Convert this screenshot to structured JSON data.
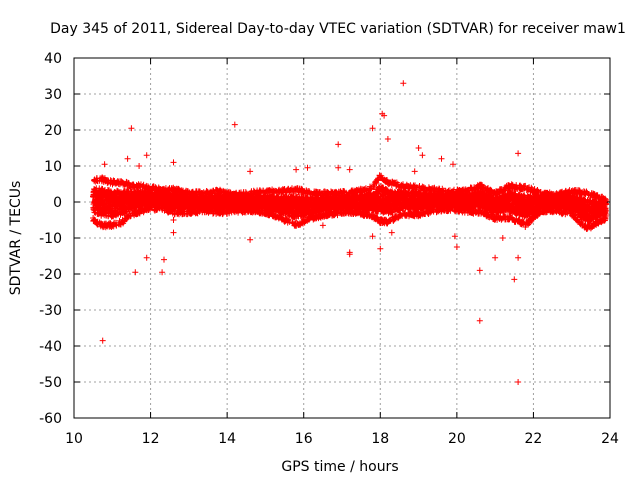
{
  "chart_data": {
    "type": "scatter",
    "title": "Day 345 of 2011, Sidereal Day-to-day VTEC variation (SDTVAR) for receiver maw1",
    "xlabel": "GPS time / hours",
    "ylabel": "SDTVAR / TECUs",
    "xlim": [
      10,
      24
    ],
    "ylim": [
      -60,
      40
    ],
    "xticks": [
      10,
      12,
      14,
      16,
      18,
      20,
      22,
      24
    ],
    "yticks": [
      -60,
      -50,
      -40,
      -30,
      -20,
      -10,
      0,
      10,
      20,
      30,
      40
    ],
    "grid": true,
    "marker": "+",
    "color": "#ff0000",
    "series": [
      {
        "name": "maw1",
        "band": [
          [
            10.5,
            -5.5,
            6.5
          ],
          [
            10.7,
            -7.0,
            7.0
          ],
          [
            11.0,
            -7.0,
            6.0
          ],
          [
            11.3,
            -6.0,
            6.0
          ],
          [
            11.5,
            -4.0,
            5.0
          ],
          [
            11.8,
            -3.0,
            5.0
          ],
          [
            12.0,
            -2.5,
            4.5
          ],
          [
            12.3,
            -2.5,
            4.0
          ],
          [
            12.6,
            -3.5,
            4.0
          ],
          [
            13.0,
            -3.5,
            3.0
          ],
          [
            13.4,
            -3.0,
            3.0
          ],
          [
            13.8,
            -3.5,
            3.5
          ],
          [
            14.2,
            -3.0,
            2.5
          ],
          [
            14.6,
            -3.0,
            3.0
          ],
          [
            15.0,
            -3.5,
            3.5
          ],
          [
            15.4,
            -5.0,
            3.5
          ],
          [
            15.8,
            -7.0,
            4.0
          ],
          [
            16.2,
            -5.0,
            3.0
          ],
          [
            16.6,
            -4.0,
            3.0
          ],
          [
            17.0,
            -3.5,
            3.0
          ],
          [
            17.4,
            -3.5,
            3.5
          ],
          [
            17.8,
            -4.5,
            4.5
          ],
          [
            18.0,
            -6.0,
            8.0
          ],
          [
            18.2,
            -6.0,
            6.0
          ],
          [
            18.6,
            -4.0,
            5.0
          ],
          [
            19.0,
            -4.0,
            4.5
          ],
          [
            19.4,
            -3.0,
            4.0
          ],
          [
            19.8,
            -2.5,
            3.5
          ],
          [
            20.2,
            -3.0,
            3.5
          ],
          [
            20.6,
            -3.5,
            5.0
          ],
          [
            21.0,
            -5.0,
            3.0
          ],
          [
            21.4,
            -5.0,
            5.0
          ],
          [
            21.8,
            -7.0,
            4.5
          ],
          [
            22.2,
            -3.0,
            3.0
          ],
          [
            22.6,
            -3.0,
            2.5
          ],
          [
            23.0,
            -4.0,
            3.5
          ],
          [
            23.4,
            -8.0,
            3.0
          ],
          [
            23.7,
            -6.0,
            2.0
          ],
          [
            23.9,
            -5.0,
            1.0
          ]
        ],
        "outliers": [
          [
            10.75,
            -38.5
          ],
          [
            11.5,
            20.5
          ],
          [
            11.6,
            -19.5
          ],
          [
            11.9,
            -15.5
          ],
          [
            12.3,
            -19.5
          ],
          [
            12.35,
            -16.0
          ],
          [
            12.6,
            -8.5
          ],
          [
            12.6,
            -5.0
          ],
          [
            14.2,
            21.5
          ],
          [
            14.6,
            -10.5
          ],
          [
            14.6,
            8.5
          ],
          [
            15.8,
            9.0
          ],
          [
            16.5,
            -6.5
          ],
          [
            16.9,
            16.0
          ],
          [
            16.9,
            9.5
          ],
          [
            17.2,
            -14.5
          ],
          [
            17.2,
            9.0
          ],
          [
            17.2,
            -14.0
          ],
          [
            17.8,
            -9.5
          ],
          [
            17.8,
            20.5
          ],
          [
            18.0,
            -13.0
          ],
          [
            18.05,
            24.5
          ],
          [
            18.1,
            24.0
          ],
          [
            18.2,
            17.5
          ],
          [
            18.3,
            -8.5
          ],
          [
            18.6,
            33.0
          ],
          [
            18.9,
            8.5
          ],
          [
            19.0,
            15.0
          ],
          [
            19.1,
            13.0
          ],
          [
            19.6,
            12.0
          ],
          [
            19.9,
            10.5
          ],
          [
            19.95,
            -9.5
          ],
          [
            20.0,
            -12.5
          ],
          [
            20.6,
            -19.0
          ],
          [
            20.6,
            -33.0
          ],
          [
            21.0,
            -15.5
          ],
          [
            21.2,
            -10.0
          ],
          [
            21.5,
            -21.5
          ],
          [
            21.6,
            -50.0
          ],
          [
            21.6,
            13.5
          ],
          [
            21.6,
            -15.5
          ],
          [
            11.4,
            12.0
          ],
          [
            11.9,
            13.0
          ],
          [
            11.7,
            10.0
          ],
          [
            12.6,
            11.0
          ],
          [
            10.8,
            10.5
          ],
          [
            16.1,
            9.5
          ]
        ]
      }
    ]
  }
}
